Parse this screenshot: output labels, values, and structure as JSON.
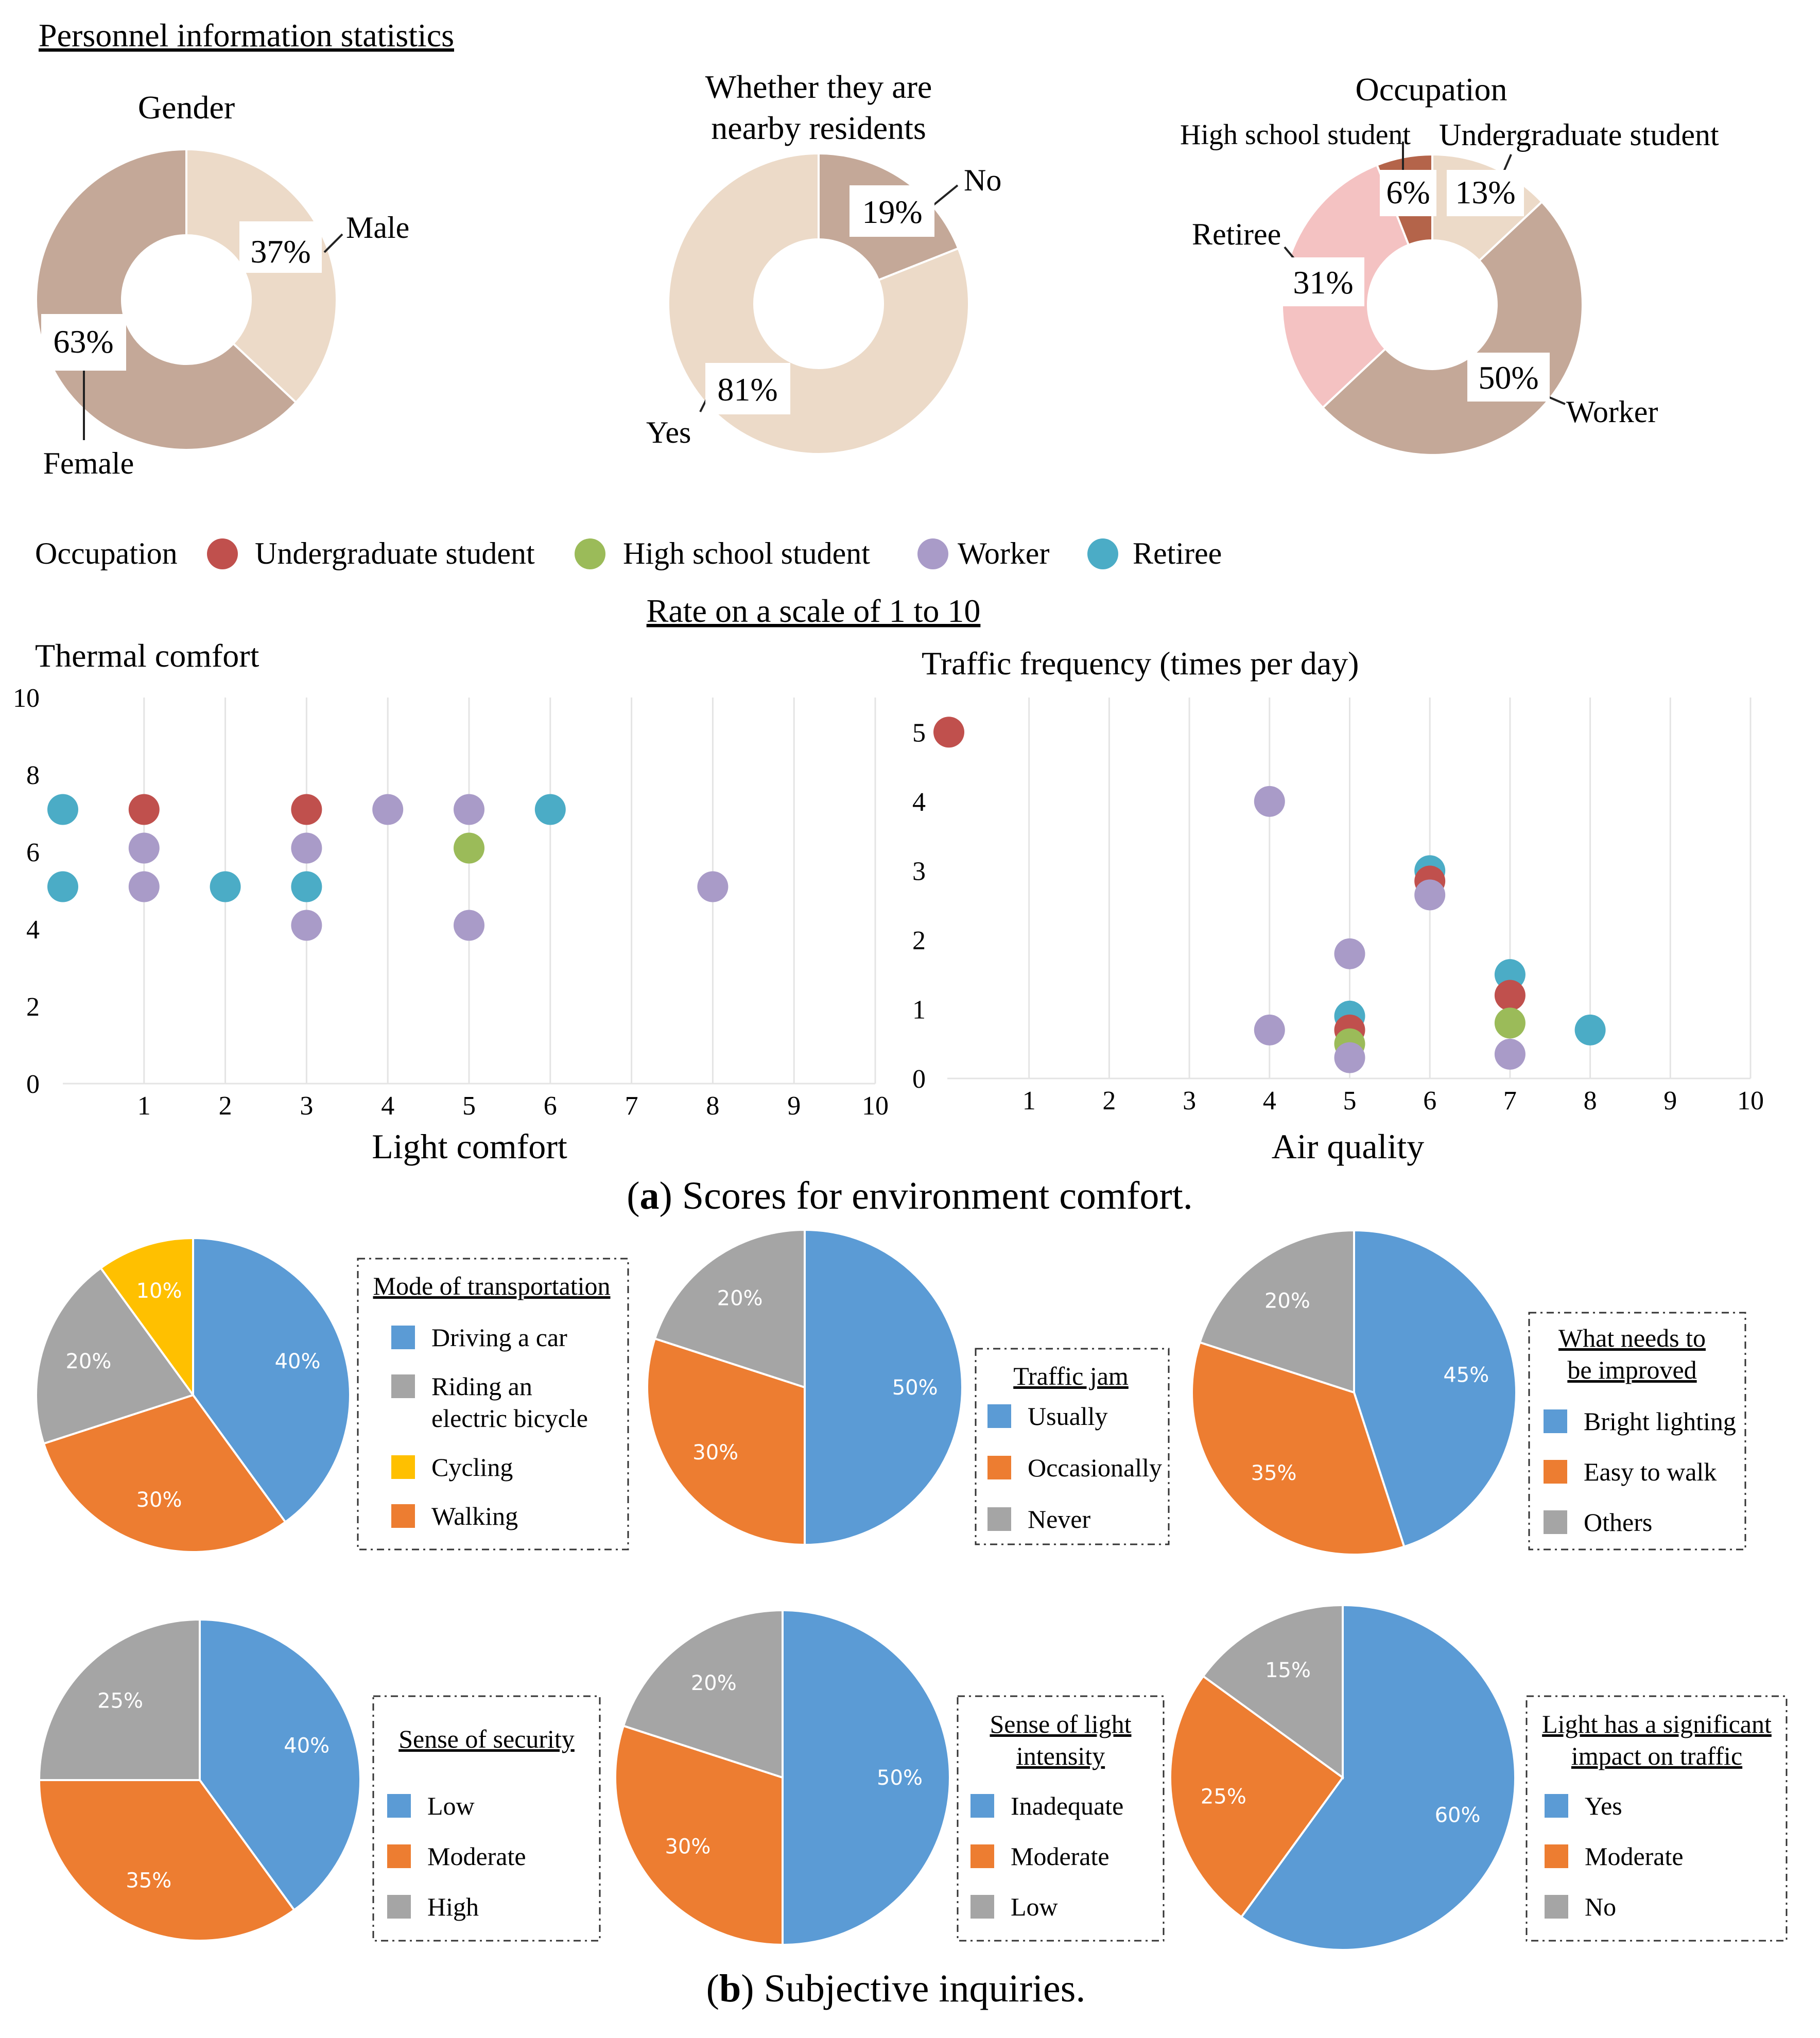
{
  "section_titles": {
    "personnel": "Personnel information statistics",
    "rate": "Rate on a scale of 1 to 10",
    "caption_a_letter": "a",
    "caption_a_text": " Scores for environment comfort.",
    "caption_b_letter": "b",
    "caption_b_text": " Subjective inquiries."
  },
  "scatter_legend": {
    "title": "Occupation",
    "items": [
      {
        "label": "Undergraduate student",
        "color": "#c0504d"
      },
      {
        "label": "High school student",
        "color": "#9bbb59"
      },
      {
        "label": "Worker",
        "color": "#a99bc8"
      },
      {
        "label": "Retiree",
        "color": "#4bacc6"
      }
    ]
  },
  "chart_data": [
    {
      "id": "gender",
      "type": "pie",
      "style": "donut",
      "title": "Gender",
      "slices": [
        {
          "label": "Male",
          "value": 37,
          "pct_label": "37%",
          "color": "#ecdac8"
        },
        {
          "label": "Female",
          "value": 63,
          "pct_label": "63%",
          "color": "#c4a898"
        }
      ]
    },
    {
      "id": "residents",
      "type": "pie",
      "style": "donut",
      "title_lines": [
        "Whether they are",
        "nearby residents"
      ],
      "slices": [
        {
          "label": "No",
          "value": 19,
          "pct_label": "19%",
          "color": "#c4a898"
        },
        {
          "label": "Yes",
          "value": 81,
          "pct_label": "81%",
          "color": "#ecdac8"
        }
      ]
    },
    {
      "id": "occupation",
      "type": "pie",
      "style": "donut",
      "title": "Occupation",
      "slices": [
        {
          "label": "Undergraduate student",
          "value": 13,
          "pct_label": "13%",
          "color": "#ecdac8"
        },
        {
          "label": "Worker",
          "value": 50,
          "pct_label": "50%",
          "color": "#c4a898"
        },
        {
          "label": "Retiree",
          "value": 31,
          "pct_label": "31%",
          "color": "#f4c2c2"
        },
        {
          "label": "High school student",
          "value": 6,
          "pct_label": "6%",
          "color": "#b4644a"
        }
      ]
    },
    {
      "id": "thermal-light",
      "type": "scatter",
      "title": "Thermal comfort",
      "xlabel": "Light comfort",
      "xlim": [
        0,
        10
      ],
      "ylim": [
        0,
        10
      ],
      "xticks": [
        1,
        2,
        3,
        4,
        5,
        6,
        7,
        8,
        9,
        10
      ],
      "yticks": [
        0,
        2,
        4,
        6,
        8,
        10
      ],
      "points": [
        {
          "x": 0,
          "y": 7.1,
          "group": "Retiree"
        },
        {
          "x": 0,
          "y": 5.1,
          "group": "Retiree"
        },
        {
          "x": 1,
          "y": 7.1,
          "group": "Undergraduate student"
        },
        {
          "x": 1,
          "y": 6.1,
          "group": "Worker"
        },
        {
          "x": 1,
          "y": 5.1,
          "group": "Worker"
        },
        {
          "x": 2,
          "y": 5.1,
          "group": "Retiree"
        },
        {
          "x": 3,
          "y": 7.1,
          "group": "Undergraduate student"
        },
        {
          "x": 3,
          "y": 6.1,
          "group": "Worker"
        },
        {
          "x": 3,
          "y": 5.1,
          "group": "Retiree"
        },
        {
          "x": 3,
          "y": 4.1,
          "group": "Worker"
        },
        {
          "x": 4,
          "y": 7.1,
          "group": "Worker"
        },
        {
          "x": 5,
          "y": 7.1,
          "group": "Worker"
        },
        {
          "x": 5,
          "y": 6.1,
          "group": "High school student"
        },
        {
          "x": 5,
          "y": 4.1,
          "group": "Worker"
        },
        {
          "x": 6,
          "y": 7.1,
          "group": "Retiree"
        },
        {
          "x": 8,
          "y": 5.1,
          "group": "Worker"
        }
      ]
    },
    {
      "id": "traffic-air",
      "type": "scatter",
      "title": "Traffic frequency (times per day)",
      "xlabel": "Air quality",
      "xlim": [
        0,
        10
      ],
      "ylim": [
        0,
        5.5
      ],
      "xticks": [
        1,
        2,
        3,
        4,
        5,
        6,
        7,
        8,
        9,
        10
      ],
      "yticks": [
        0,
        1,
        2,
        3,
        4,
        5
      ],
      "points": [
        {
          "x": 0,
          "y": 5.0,
          "group": "Undergraduate student"
        },
        {
          "x": 4,
          "y": 4.0,
          "group": "Worker"
        },
        {
          "x": 4,
          "y": 0.7,
          "group": "Worker"
        },
        {
          "x": 5,
          "y": 1.8,
          "group": "Worker"
        },
        {
          "x": 5,
          "y": 0.9,
          "group": "Retiree"
        },
        {
          "x": 5,
          "y": 0.7,
          "group": "Undergraduate student"
        },
        {
          "x": 5,
          "y": 0.5,
          "group": "High school student"
        },
        {
          "x": 5,
          "y": 0.3,
          "group": "Worker"
        },
        {
          "x": 6,
          "y": 3.0,
          "group": "Retiree"
        },
        {
          "x": 6,
          "y": 2.85,
          "group": "Undergraduate student"
        },
        {
          "x": 6,
          "y": 2.65,
          "group": "Worker"
        },
        {
          "x": 7,
          "y": 1.5,
          "group": "Retiree"
        },
        {
          "x": 7,
          "y": 1.2,
          "group": "Undergraduate student"
        },
        {
          "x": 7,
          "y": 0.8,
          "group": "High school student"
        },
        {
          "x": 7,
          "y": 0.35,
          "group": "Worker"
        },
        {
          "x": 8,
          "y": 0.7,
          "group": "Retiree"
        }
      ]
    },
    {
      "id": "transport",
      "type": "pie",
      "legend_title_lines": [
        "Mode of transportation"
      ],
      "slices": [
        {
          "label_lines": [
            "Driving a car"
          ],
          "value": 40,
          "pct_label": "40%",
          "color": "#5b9bd5"
        },
        {
          "label_lines": [
            "Walking"
          ],
          "value": 30,
          "pct_label": "30%",
          "color": "#ed7d31"
        },
        {
          "label_lines": [
            "Riding an",
            "electric bicycle"
          ],
          "value": 20,
          "pct_label": "20%",
          "color": "#a5a5a5"
        },
        {
          "label_lines": [
            "Cycling"
          ],
          "value": 10,
          "pct_label": "10%",
          "color": "#ffc000"
        }
      ],
      "legend_order": [
        0,
        2,
        3,
        1
      ]
    },
    {
      "id": "traffic-jam",
      "type": "pie",
      "legend_title_lines": [
        "Traffic jam"
      ],
      "slices": [
        {
          "label_lines": [
            "Usually"
          ],
          "value": 50,
          "pct_label": "50%",
          "color": "#5b9bd5"
        },
        {
          "label_lines": [
            "Occasionally"
          ],
          "value": 30,
          "pct_label": "30%",
          "color": "#ed7d31"
        },
        {
          "label_lines": [
            "Never"
          ],
          "value": 20,
          "pct_label": "20%",
          "color": "#a5a5a5"
        }
      ],
      "legend_order": [
        0,
        1,
        2
      ]
    },
    {
      "id": "improve",
      "type": "pie",
      "legend_title_lines": [
        "What needs to",
        "be improved"
      ],
      "slices": [
        {
          "label_lines": [
            "Bright lighting"
          ],
          "value": 45,
          "pct_label": "45%",
          "color": "#5b9bd5"
        },
        {
          "label_lines": [
            "Easy to walk"
          ],
          "value": 35,
          "pct_label": "35%",
          "color": "#ed7d31"
        },
        {
          "label_lines": [
            "Others"
          ],
          "value": 20,
          "pct_label": "20%",
          "color": "#a5a5a5"
        }
      ],
      "legend_order": [
        0,
        1,
        2
      ]
    },
    {
      "id": "security",
      "type": "pie",
      "legend_title_lines": [
        "Sense of security"
      ],
      "slices": [
        {
          "label_lines": [
            "Low"
          ],
          "value": 40,
          "pct_label": "40%",
          "color": "#5b9bd5"
        },
        {
          "label_lines": [
            "Moderate"
          ],
          "value": 35,
          "pct_label": "35%",
          "color": "#ed7d31"
        },
        {
          "label_lines": [
            "High"
          ],
          "value": 25,
          "pct_label": "25%",
          "color": "#a5a5a5"
        }
      ],
      "legend_order": [
        0,
        1,
        2
      ]
    },
    {
      "id": "light-intensity",
      "type": "pie",
      "legend_title_lines": [
        "Sense of light",
        "intensity"
      ],
      "slices": [
        {
          "label_lines": [
            "Inadequate"
          ],
          "value": 50,
          "pct_label": "50%",
          "color": "#5b9bd5"
        },
        {
          "label_lines": [
            "Moderate"
          ],
          "value": 30,
          "pct_label": "30%",
          "color": "#ed7d31"
        },
        {
          "label_lines": [
            "Low"
          ],
          "value": 20,
          "pct_label": "20%",
          "color": "#a5a5a5"
        }
      ],
      "legend_order": [
        0,
        1,
        2
      ]
    },
    {
      "id": "light-traffic",
      "type": "pie",
      "legend_title_lines": [
        "Light has a significant",
        "impact on traffic"
      ],
      "slices": [
        {
          "label_lines": [
            "Yes"
          ],
          "value": 60,
          "pct_label": "60%",
          "color": "#5b9bd5"
        },
        {
          "label_lines": [
            "Moderate"
          ],
          "value": 25,
          "pct_label": "25%",
          "color": "#ed7d31"
        },
        {
          "label_lines": [
            "No"
          ],
          "value": 15,
          "pct_label": "15%",
          "color": "#a5a5a5"
        }
      ],
      "legend_order": [
        0,
        1,
        2
      ]
    }
  ]
}
